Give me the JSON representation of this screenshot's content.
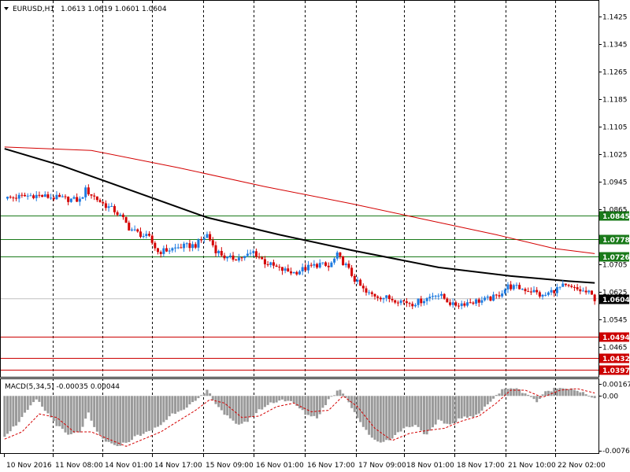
{
  "header": {
    "symbol_label": "EURUSD,H1",
    "ohlc": "1.0613 1.0619 1.0601 1.0604",
    "macd_label": "MACD(5,34,5) -0.00035 0.00044"
  },
  "colors": {
    "background": "#ffffff",
    "bull": "#1e7be0",
    "bear": "#d40000",
    "ma_fast": "#000000",
    "ma_slow": "#d40000",
    "support_line": "#cc0000",
    "resistance_line": "#1a7a1a",
    "macd_hist": "#9a9a9a",
    "macd_signal": "#d40000",
    "price_tag": "#000000"
  },
  "chart_data": [
    {
      "type": "candlestick",
      "symbol": "EURUSD",
      "timeframe": "H1",
      "y_ticks": [
        "1.1425",
        "1.1345",
        "1.1265",
        "1.1185",
        "1.1105",
        "1.1025",
        "1.0945",
        "1.0865",
        "1.0705",
        "1.0625",
        "1.0545",
        "1.0465"
      ],
      "ylim": [
        1.0377,
        1.147
      ],
      "x_ticks": [
        "10 Nov 2016",
        "11 Nov 08:00",
        "14 Nov 01:00",
        "14 Nov 17:00",
        "15 Nov 09:00",
        "16 Nov 01:00",
        "16 Nov 17:00",
        "17 Nov 09:00",
        "18 Nov 01:00",
        "18 Nov 17:00",
        "21 Nov 10:00",
        "22 Nov 02:00"
      ],
      "grid": "vertical-dashed",
      "current_price": 1.0604,
      "horizontal_levels": [
        {
          "value": 1.0845,
          "label": "1.0845",
          "kind": "resistance"
        },
        {
          "value": 1.0778,
          "label": "1.0778",
          "kind": "resistance"
        },
        {
          "value": 1.0726,
          "label": "1.0726",
          "kind": "resistance"
        },
        {
          "value": 1.0494,
          "label": "1.0494",
          "kind": "support"
        },
        {
          "value": 1.0432,
          "label": "1.0432",
          "kind": "support"
        },
        {
          "value": 1.0397,
          "label": "1.0397",
          "kind": "support"
        }
      ],
      "close_path": [
        [
          0,
          1.0895
        ],
        [
          10,
          1.0905
        ],
        [
          20,
          1.0895
        ],
        [
          26,
          1.089
        ],
        [
          28,
          1.092
        ],
        [
          31,
          1.09
        ],
        [
          34,
          1.088
        ],
        [
          38,
          1.086
        ],
        [
          41,
          1.0835
        ],
        [
          43,
          1.081
        ],
        [
          46,
          1.0795
        ],
        [
          50,
          1.078
        ],
        [
          53,
          1.074
        ],
        [
          56,
          1.0745
        ],
        [
          61,
          1.0755
        ],
        [
          66,
          1.076
        ],
        [
          70,
          1.079
        ],
        [
          73,
          1.0745
        ],
        [
          77,
          1.072
        ],
        [
          83,
          1.0725
        ],
        [
          86,
          1.074
        ],
        [
          90,
          1.071
        ],
        [
          95,
          1.069
        ],
        [
          100,
          1.068
        ],
        [
          105,
          1.0695
        ],
        [
          109,
          1.0705
        ],
        [
          112,
          1.0695
        ],
        [
          115,
          1.073
        ],
        [
          118,
          1.07
        ],
        [
          121,
          1.066
        ],
        [
          125,
          1.062
        ],
        [
          130,
          1.061
        ],
        [
          136,
          1.06
        ],
        [
          141,
          1.059
        ],
        [
          146,
          1.0605
        ],
        [
          149,
          1.062
        ],
        [
          152,
          1.0605
        ],
        [
          155,
          1.0585
        ],
        [
          158,
          1.059
        ],
        [
          161,
          1.0595
        ],
        [
          166,
          1.06
        ],
        [
          170,
          1.061
        ],
        [
          174,
          1.064
        ],
        [
          178,
          1.0635
        ],
        [
          183,
          1.0625
        ],
        [
          186,
          1.061
        ],
        [
          189,
          1.0625
        ],
        [
          193,
          1.064
        ],
        [
          198,
          1.063
        ],
        [
          202,
          1.062
        ],
        [
          204,
          1.0604
        ]
      ],
      "moving_averages": [
        {
          "color": "#000000",
          "points": [
            [
              0,
              1.104
            ],
            [
              20,
              1.099
            ],
            [
              45,
              1.0915
            ],
            [
              70,
              1.084
            ],
            [
              95,
              1.079
            ],
            [
              120,
              1.0745
            ],
            [
              150,
              1.0695
            ],
            [
              175,
              1.067
            ],
            [
              195,
              1.0655
            ],
            [
              204,
              1.065
            ]
          ]
        },
        {
          "color": "#d40000",
          "points": [
            [
              0,
              1.1045
            ],
            [
              30,
              1.1035
            ],
            [
              60,
              1.0985
            ],
            [
              90,
              1.093
            ],
            [
              120,
              1.088
            ],
            [
              145,
              1.0835
            ],
            [
              170,
              1.079
            ],
            [
              190,
              1.075
            ],
            [
              204,
              1.0735
            ]
          ]
        }
      ]
    },
    {
      "type": "bar",
      "indicator": "MACD",
      "y_ticks": [
        "0.00167",
        "0.00",
        "-0.00762"
      ],
      "ylim": [
        -0.00762,
        0.002
      ],
      "bars_path": [
        [
          0,
          -0.0055
        ],
        [
          4,
          -0.004
        ],
        [
          8,
          -0.002
        ],
        [
          11,
          -0.0005
        ],
        [
          14,
          -0.002
        ],
        [
          18,
          -0.004
        ],
        [
          22,
          -0.0055
        ],
        [
          26,
          -0.005
        ],
        [
          29,
          -0.0025
        ],
        [
          31,
          -0.0045
        ],
        [
          34,
          -0.006
        ],
        [
          38,
          -0.007
        ],
        [
          42,
          -0.0065
        ],
        [
          46,
          -0.0055
        ],
        [
          50,
          -0.005
        ],
        [
          54,
          -0.004
        ],
        [
          58,
          -0.0025
        ],
        [
          63,
          -0.0015
        ],
        [
          67,
          -0.0005
        ],
        [
          70,
          0.0008
        ],
        [
          73,
          -0.001
        ],
        [
          76,
          -0.0025
        ],
        [
          80,
          -0.004
        ],
        [
          84,
          -0.0035
        ],
        [
          88,
          -0.002
        ],
        [
          92,
          -0.001
        ],
        [
          96,
          -0.0005
        ],
        [
          100,
          -0.001
        ],
        [
          104,
          -0.0025
        ],
        [
          108,
          -0.003
        ],
        [
          112,
          -0.0005
        ],
        [
          116,
          0.001
        ],
        [
          119,
          -0.0008
        ],
        [
          122,
          -0.003
        ],
        [
          126,
          -0.0055
        ],
        [
          130,
          -0.0065
        ],
        [
          134,
          -0.0058
        ],
        [
          138,
          -0.0045
        ],
        [
          142,
          -0.004
        ],
        [
          146,
          -0.0055
        ],
        [
          150,
          -0.0035
        ],
        [
          154,
          -0.004
        ],
        [
          158,
          -0.003
        ],
        [
          162,
          -0.003
        ],
        [
          166,
          -0.0015
        ],
        [
          170,
          0.0
        ],
        [
          172,
          0.0008
        ],
        [
          175,
          0.0012
        ],
        [
          178,
          0.0008
        ],
        [
          181,
          0.0002
        ],
        [
          184,
          -0.0008
        ],
        [
          187,
          0.0005
        ],
        [
          190,
          0.001
        ],
        [
          194,
          0.0012
        ],
        [
          198,
          0.0008
        ],
        [
          201,
          0.0002
        ],
        [
          204,
          -0.0005
        ]
      ],
      "signal_path": [
        [
          0,
          -0.006
        ],
        [
          6,
          -0.005
        ],
        [
          12,
          -0.0025
        ],
        [
          18,
          -0.003
        ],
        [
          24,
          -0.005
        ],
        [
          30,
          -0.005
        ],
        [
          36,
          -0.006
        ],
        [
          42,
          -0.007
        ],
        [
          48,
          -0.006
        ],
        [
          54,
          -0.005
        ],
        [
          60,
          -0.0035
        ],
        [
          66,
          -0.002
        ],
        [
          71,
          -0.0005
        ],
        [
          76,
          -0.001
        ],
        [
          82,
          -0.003
        ],
        [
          88,
          -0.0028
        ],
        [
          94,
          -0.0015
        ],
        [
          100,
          -0.001
        ],
        [
          106,
          -0.0022
        ],
        [
          112,
          -0.002
        ],
        [
          117,
          0.0
        ],
        [
          122,
          -0.0015
        ],
        [
          128,
          -0.0045
        ],
        [
          134,
          -0.0062
        ],
        [
          140,
          -0.0052
        ],
        [
          146,
          -0.0048
        ],
        [
          152,
          -0.0045
        ],
        [
          158,
          -0.0035
        ],
        [
          164,
          -0.0028
        ],
        [
          170,
          -0.001
        ],
        [
          175,
          0.0008
        ],
        [
          180,
          0.0008
        ],
        [
          186,
          -0.0002
        ],
        [
          192,
          0.0008
        ],
        [
          198,
          0.001
        ],
        [
          204,
          0.0004
        ]
      ]
    }
  ]
}
